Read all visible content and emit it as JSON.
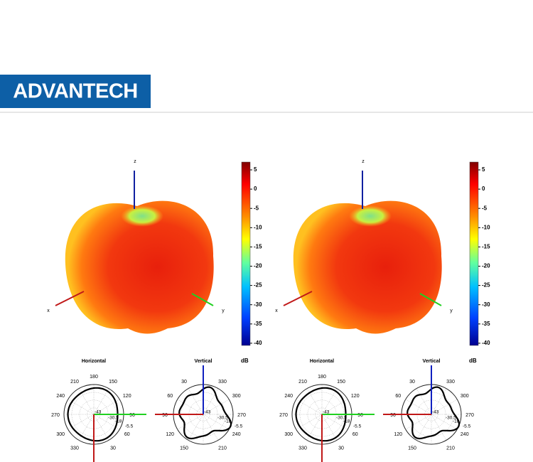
{
  "logo": "ADVANTECH",
  "panels": [
    {
      "axis_labels": {
        "z": "z",
        "x": "x",
        "y": "y"
      },
      "colorbar": {
        "ticks": [
          5,
          0,
          -5,
          -10,
          -15,
          -20,
          -25,
          -30,
          -35,
          -40
        ],
        "unit": "dB"
      },
      "polars": [
        {
          "title": "Horizontal",
          "angle_labels": [
            180,
            150,
            120,
            90,
            60,
            30,
            null,
            330,
            300,
            270,
            240,
            210
          ],
          "ring_labels": [
            -43,
            -30.5,
            -18,
            -5.5
          ]
        },
        {
          "title": "Vertical",
          "angle_labels": [
            null,
            330,
            300,
            270,
            240,
            210,
            null,
            150,
            120,
            90,
            60,
            30
          ],
          "ring_labels": [
            -43,
            -30.5,
            -18,
            -5.5
          ]
        }
      ]
    },
    {
      "axis_labels": {
        "z": "z",
        "x": "x",
        "y": "y"
      },
      "colorbar": {
        "ticks": [
          5,
          0,
          -5,
          -10,
          -15,
          -20,
          -25,
          -30,
          -35,
          -40
        ],
        "unit": "dB"
      },
      "polars": [
        {
          "title": "Horizontal",
          "angle_labels": [
            180,
            150,
            120,
            90,
            60,
            30,
            null,
            330,
            300,
            270,
            240,
            210
          ],
          "ring_labels": [
            -43,
            -30.5,
            -18,
            -5.5
          ]
        },
        {
          "title": "Vertical",
          "angle_labels": [
            null,
            330,
            300,
            270,
            240,
            210,
            null,
            150,
            120,
            90,
            60,
            30
          ],
          "ring_labels": [
            -43,
            -30.5,
            -18,
            -5.5
          ]
        }
      ]
    }
  ]
}
